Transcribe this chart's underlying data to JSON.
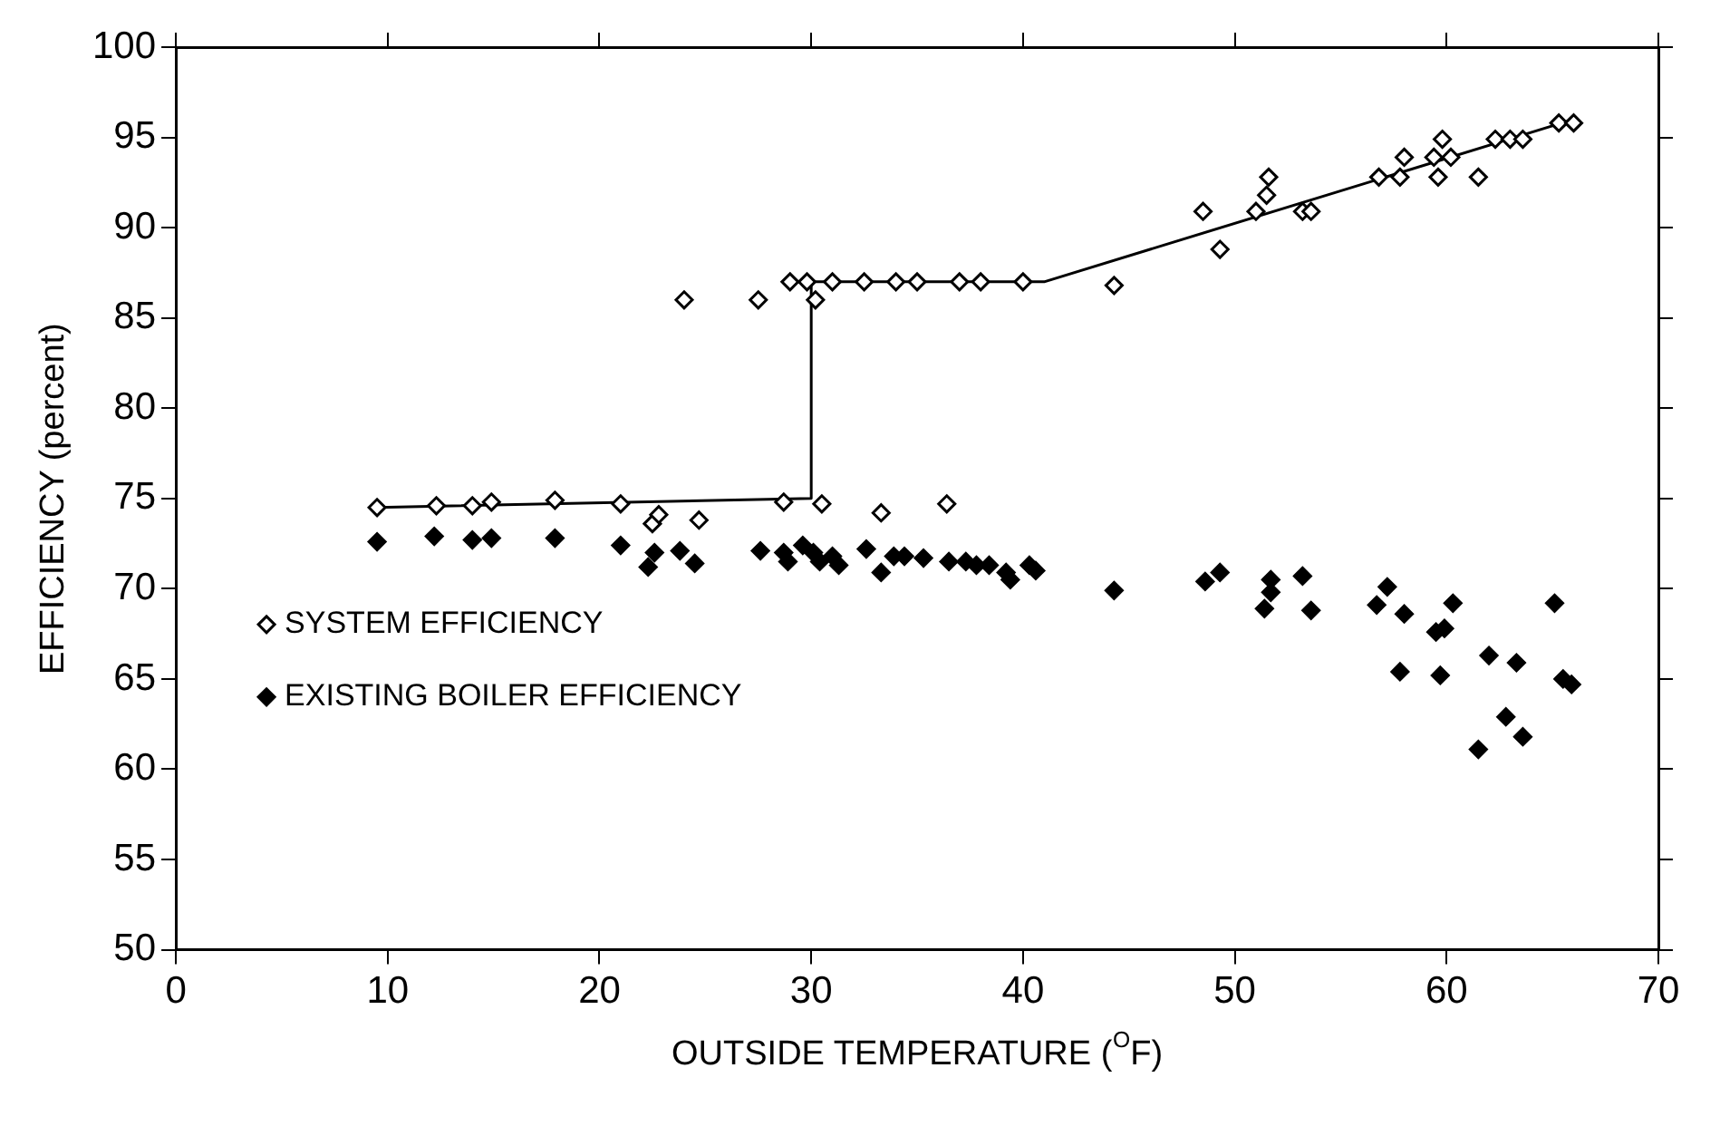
{
  "chart_data": {
    "type": "scatter",
    "xlabel": "OUTSIDE TEMPERATURE ($^{O}$F)",
    "ylabel": "EFFICIENCY (percent)",
    "xlim": [
      0,
      70
    ],
    "xticks": [
      0,
      10,
      20,
      30,
      40,
      50,
      60,
      70
    ],
    "ylim": [
      50,
      100
    ],
    "yticks": [
      50,
      55,
      60,
      65,
      70,
      75,
      80,
      85,
      90,
      95,
      100
    ],
    "grid": false,
    "legend": "left",
    "series": [
      {
        "name": "SYSTEM EFFICIENCY",
        "color": "#000000",
        "marker": "diamond",
        "x": [
          9.5,
          12.3,
          14,
          14.9,
          17.9,
          21,
          22.5,
          22.8,
          24,
          24.7,
          27.5,
          28.7,
          29,
          29.8,
          30.2,
          30.5,
          31,
          32.5,
          33.3,
          34,
          35,
          36.4,
          37,
          38,
          40,
          44.3,
          48.5,
          49.3,
          51,
          51.5,
          51.6,
          53.2,
          53.6,
          56.8,
          57.8,
          58,
          59.4,
          59.6,
          59.8,
          60.2,
          61.5,
          62.3,
          63,
          63.6,
          65.3,
          66
        ],
        "values": [
          74.5,
          74.6,
          74.6,
          74.8,
          74.9,
          74.7,
          73.6,
          74.1,
          86,
          73.8,
          86,
          74.8,
          87,
          87,
          86,
          74.7,
          87,
          87,
          74.2,
          87,
          87,
          74.7,
          87,
          87,
          87,
          86.8,
          90.9,
          88.8,
          90.9,
          91.8,
          92.8,
          90.9,
          90.9,
          92.8,
          92.8,
          93.9,
          93.9,
          92.8,
          94.9,
          93.9,
          92.8,
          94.9,
          94.9,
          94.9,
          95.8,
          95.8
        ]
      },
      {
        "name": "EXISTING BOILER EFFICIENCY",
        "color": "#000000",
        "marker": "diamond",
        "x": [
          9.5,
          12.2,
          14,
          14.9,
          17.9,
          21,
          22.3,
          22.6,
          23.8,
          24.5,
          27.6,
          28.7,
          28.9,
          29.6,
          30.1,
          30.4,
          31,
          31.3,
          32.6,
          33.3,
          33.9,
          34.4,
          35.3,
          36.5,
          37.3,
          37.8,
          38.4,
          39.2,
          39.4,
          40.3,
          40.6,
          44.3,
          48.6,
          49.3,
          51.4,
          51.7,
          51.7,
          53.2,
          53.6,
          56.7,
          57.2,
          57.8,
          58,
          59.5,
          59.7,
          59.9,
          60.3,
          61.5,
          62,
          62.8,
          63.3,
          63.6,
          65.1,
          65.5,
          65.9
        ],
        "values": [
          72.6,
          72.9,
          72.7,
          72.8,
          72.8,
          72.4,
          71.2,
          72,
          72.1,
          71.4,
          72.1,
          72,
          71.5,
          72.4,
          72,
          71.5,
          71.8,
          71.3,
          72.2,
          70.9,
          71.8,
          71.8,
          71.7,
          71.5,
          71.5,
          71.3,
          71.3,
          70.9,
          70.5,
          71.3,
          71,
          69.9,
          70.4,
          70.9,
          68.9,
          70.5,
          69.8,
          70.7,
          68.8,
          69.1,
          70.1,
          65.4,
          68.6,
          67.6,
          65.2,
          67.8,
          69.2,
          61.1,
          66.3,
          62.9,
          65.9,
          61.8,
          69.2,
          65,
          64.7
        ]
      },
      {
        "type": "line",
        "color": "#000000",
        "marker": "none",
        "x": [
          9.5,
          30,
          30,
          41,
          66
        ],
        "values": [
          74.5,
          75,
          87,
          87,
          96
        ]
      }
    ]
  }
}
